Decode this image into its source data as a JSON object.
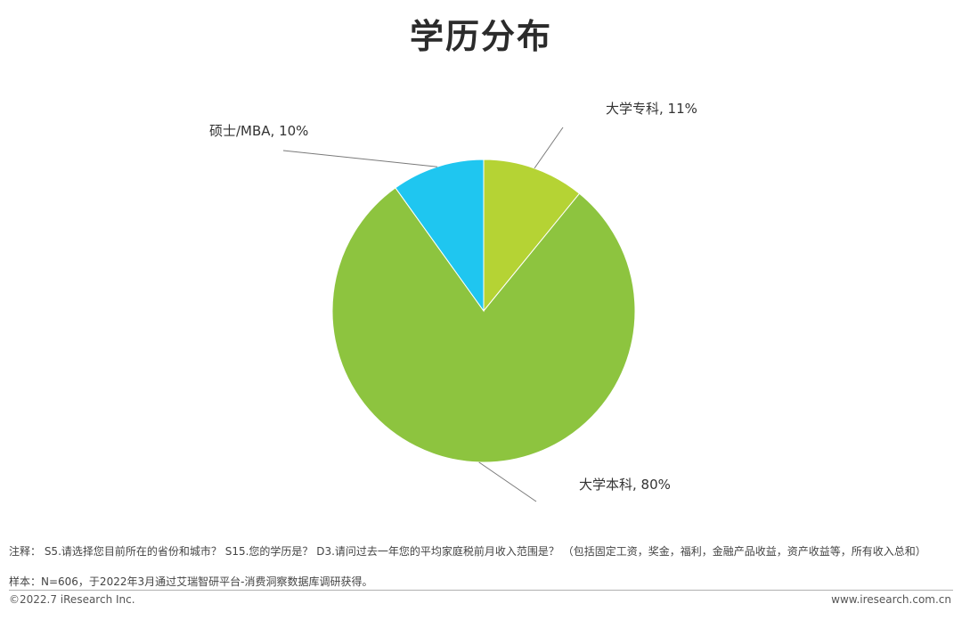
{
  "colors": {
    "zhuanke": "#b5d334",
    "benke": "#8dc43f",
    "shuoshi": "#1fc6f0",
    "leader": "#7a7a7a"
  },
  "chart_data": {
    "type": "pie",
    "title": "学历分布",
    "slices": [
      {
        "label": "大学专科, 11%",
        "name": "大学专科",
        "value": 11,
        "color_key": "zhuanke"
      },
      {
        "label": "大学本科, 80%",
        "name": "大学本科",
        "value": 80,
        "color_key": "benke"
      },
      {
        "label": "硕士/MBA, 10%",
        "name": "硕士/MBA",
        "value": 10,
        "color_key": "shuoshi"
      }
    ]
  },
  "footer": {
    "note": "注释：  S5.请选择您目前所在的省份和城市？ S15.您的学历是？ D3.请问过去一年您的平均家庭税前月收入范围是？ （包括固定工资，奖金，福利，金融产品收益，资产收益等，所有收入总和）",
    "sample": "样本：N=606，于2022年3月通过艾瑞智研平台-消费洞察数据库调研获得。",
    "copyright": "©2022.7 iResearch Inc.",
    "website": "www.iresearch.com.cn"
  }
}
